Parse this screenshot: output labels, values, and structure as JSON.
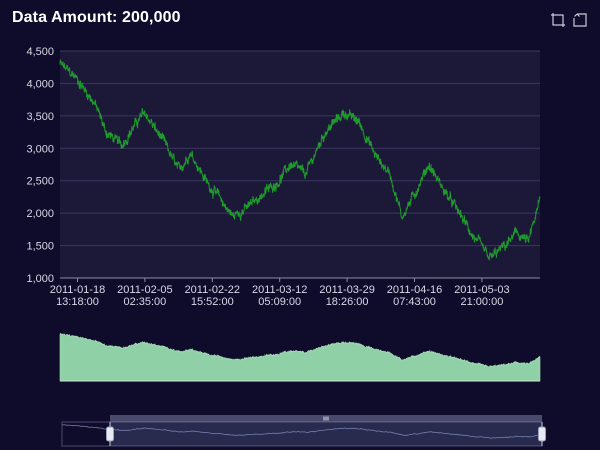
{
  "header": {
    "title": "Data Amount: 200,000"
  },
  "toolbox": {
    "zoom_icon": "data-zoom-icon",
    "reset_icon": "zoom-reset-icon"
  },
  "colors": {
    "background": "#0e0c2a",
    "plot_background": "#1b1838",
    "grid": "#3b3960",
    "line": "#1f9a2c",
    "area_fill": "#8fd0a6",
    "axis_text": "#d8d8e6"
  },
  "chart_data": {
    "type": "line",
    "title": "Data Amount: 200,000",
    "xlabel": "",
    "ylabel": "",
    "grid": true,
    "ylim": [
      1000,
      4500
    ],
    "y_ticks": [
      "1,000",
      "1,500",
      "2,000",
      "2,500",
      "3,000",
      "3,500",
      "4,000",
      "4,500"
    ],
    "x_range": [
      "2011-01-14 00:00:00",
      "2011-05-19 00:00:00"
    ],
    "x_ticks": [
      {
        "date": "2011-01-18",
        "time": "13:18:00"
      },
      {
        "date": "2011-02-05",
        "time": "02:35:00"
      },
      {
        "date": "2011-02-22",
        "time": "15:52:00"
      },
      {
        "date": "2011-03-12",
        "time": "05:09:00"
      },
      {
        "date": "2011-03-29",
        "time": "18:26:00"
      },
      {
        "date": "2011-04-16",
        "time": "07:43:00"
      },
      {
        "date": "2011-05-03",
        "time": "21:00:00"
      }
    ],
    "series": [
      {
        "x": [
          "2011-01-14",
          "2011-01-18",
          "2011-01-23",
          "2011-01-26",
          "2011-01-30",
          "2011-02-03",
          "2011-02-05",
          "2011-02-10",
          "2011-02-14",
          "2011-02-17",
          "2011-02-21",
          "2011-02-25",
          "2011-02-28",
          "2011-03-04",
          "2011-03-08",
          "2011-03-12",
          "2011-03-15",
          "2011-03-19",
          "2011-03-24",
          "2011-03-29",
          "2011-04-02",
          "2011-04-06",
          "2011-04-10",
          "2011-04-13",
          "2011-04-16",
          "2011-04-20",
          "2011-04-24",
          "2011-04-28",
          "2011-05-02",
          "2011-05-06",
          "2011-05-10",
          "2011-05-13",
          "2011-05-16",
          "2011-05-19"
        ],
        "y": [
          4300,
          4100,
          3700,
          3250,
          3050,
          3400,
          3550,
          3100,
          2650,
          2950,
          2500,
          2200,
          1950,
          2100,
          2300,
          2500,
          2750,
          2600,
          3250,
          3550,
          3400,
          2900,
          2600,
          1950,
          2250,
          2750,
          2350,
          2000,
          1600,
          1300,
          1500,
          1700,
          1550,
          2200
        ]
      }
    ],
    "data_zoom": {
      "type": "slider",
      "start_percent": 10,
      "end_percent": 100
    }
  }
}
